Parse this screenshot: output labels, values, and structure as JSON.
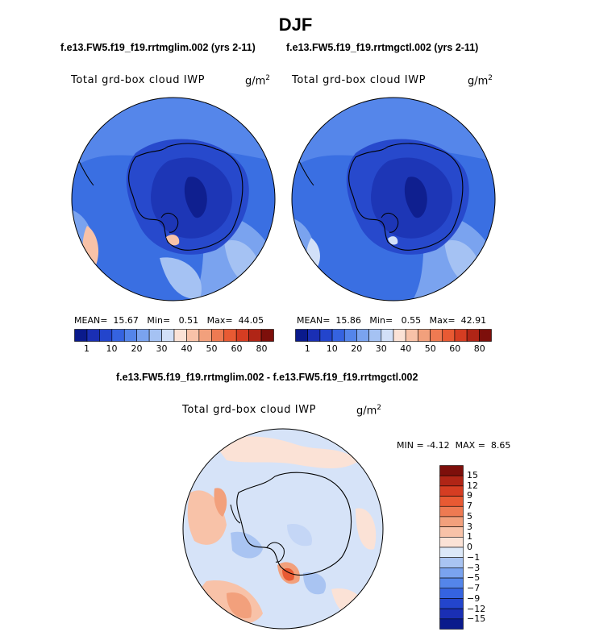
{
  "figure": {
    "title": "DJF",
    "left_case": "f.e13.FW5.f19_f19.rrtmglim.002 (yrs 2-11)",
    "right_case": "f.e13.FW5.f19_f19.rrtmgctl.002 (yrs 2-11)",
    "diff_title": "f.e13.FW5.f19_f19.rrtmglim.002 - f.e13.FW5.f19_f19.rrtmgctl.002"
  },
  "panels": {
    "left": {
      "label": "Total grd-box cloud IWP",
      "unit": "g/m",
      "unit_exp": "2",
      "mean_label": "MEAN=",
      "mean": "15.67",
      "min_label": "Min=",
      "min": "0.51",
      "max_label": "Max=",
      "max": "44.05"
    },
    "right": {
      "label": "Total grd-box cloud IWP",
      "unit": "g/m",
      "unit_exp": "2",
      "mean_label": "MEAN=",
      "mean": "15.86",
      "min_label": "Min=",
      "min": "0.55",
      "max_label": "Max=",
      "max": "42.91"
    },
    "diff": {
      "label": "Total grd-box cloud IWP",
      "unit": "g/m",
      "unit_exp": "2",
      "min_label": "MIN =",
      "min": "-4.12",
      "max_label": "MAX =",
      "max": "8.65"
    }
  },
  "chart_data": [
    {
      "type": "heatmap",
      "projection": "south-polar-stereographic",
      "title": "Total grd-box cloud IWP",
      "units": "g/m^2",
      "case": "f.e13.FW5.f19_f19.rrtmglim.002 (yrs 2-11)",
      "season": "DJF",
      "stats": {
        "mean": 15.67,
        "min": 0.51,
        "max": 44.05
      },
      "colorbar": {
        "tick_labels": [
          "1",
          "10",
          "20",
          "30",
          "40",
          "50",
          "60",
          "80"
        ],
        "colors": [
          "#0a1a8c",
          "#1a2fb4",
          "#2345cc",
          "#3563e0",
          "#5485ea",
          "#7aa3ef",
          "#a5c2f3",
          "#d2e0f8",
          "#fbe2d6",
          "#f8c2a8",
          "#f2a07c",
          "#ee7a52",
          "#e85a33",
          "#d53d22",
          "#b02516",
          "#7d0f0b"
        ]
      }
    },
    {
      "type": "heatmap",
      "projection": "south-polar-stereographic",
      "title": "Total grd-box cloud IWP",
      "units": "g/m^2",
      "case": "f.e13.FW5.f19_f19.rrtmgctl.002 (yrs 2-11)",
      "season": "DJF",
      "stats": {
        "mean": 15.86,
        "min": 0.55,
        "max": 42.91
      },
      "colorbar": {
        "tick_labels": [
          "1",
          "10",
          "20",
          "30",
          "40",
          "50",
          "60",
          "80"
        ],
        "colors": [
          "#0a1a8c",
          "#1a2fb4",
          "#2345cc",
          "#3563e0",
          "#5485ea",
          "#7aa3ef",
          "#a5c2f3",
          "#d2e0f8",
          "#fbe2d6",
          "#f8c2a8",
          "#f2a07c",
          "#ee7a52",
          "#e85a33",
          "#d53d22",
          "#b02516",
          "#7d0f0b"
        ]
      }
    },
    {
      "type": "heatmap",
      "projection": "south-polar-stereographic",
      "title": "Total grd-box cloud IWP",
      "units": "g/m^2",
      "case": "f.e13.FW5.f19_f19.rrtmglim.002 - f.e13.FW5.f19_f19.rrtmgctl.002",
      "stats": {
        "min": -4.12,
        "max": 8.65
      },
      "colorbar": {
        "tick_labels": [
          "15",
          "12",
          "9",
          "7",
          "5",
          "3",
          "1",
          "0",
          "−1",
          "−3",
          "−5",
          "−7",
          "−9",
          "−12",
          "−15"
        ],
        "colors": [
          "#7d0f0b",
          "#b02516",
          "#d53d22",
          "#e85a33",
          "#ee7a52",
          "#f2a07c",
          "#f8c2a8",
          "#fbe2d6",
          "#dce8f8",
          "#a9c4f2",
          "#7aa3ef",
          "#5485ea",
          "#3563e0",
          "#2345cc",
          "#1a2fb4",
          "#0a1a8c"
        ]
      }
    }
  ]
}
